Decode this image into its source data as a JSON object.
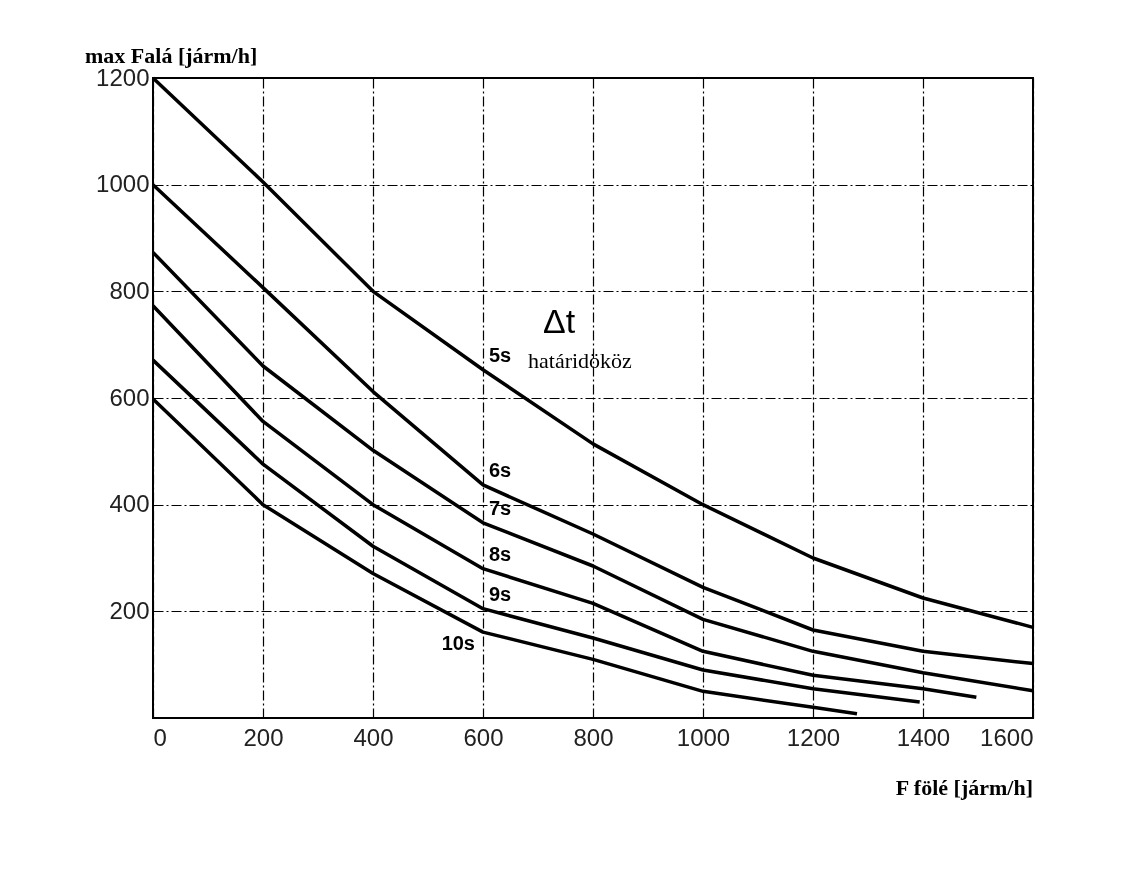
{
  "chart_data": {
    "type": "line",
    "xlabel": "F fölé [járm/h]",
    "ylabel": "max Falá [járm/h]",
    "xlim": [
      0,
      1600
    ],
    "xticks": [
      0,
      200,
      400,
      600,
      800,
      1000,
      1200,
      1400,
      1600
    ],
    "ylim": [
      0,
      1200
    ],
    "yticks": [
      200,
      400,
      600,
      800,
      1000,
      1200
    ],
    "grid": true,
    "legend": false,
    "marker": "none",
    "line_style": "solid",
    "annotations": [
      "Δt",
      "határidököz"
    ],
    "series": [
      {
        "name": "5s",
        "color": "#000000",
        "x": [
          0,
          200,
          400,
          600,
          800,
          1000,
          1200,
          1400,
          1600
        ],
        "values": [
          1200,
          1005,
          800,
          653,
          514,
          400,
          300,
          225,
          170
        ]
      },
      {
        "name": "6s",
        "color": "#000000",
        "x": [
          0,
          200,
          400,
          600,
          800,
          1000,
          1200,
          1400,
          1600
        ],
        "values": [
          1000,
          807,
          612,
          437,
          345,
          245,
          165,
          125,
          102
        ]
      },
      {
        "name": "7s",
        "color": "#000000",
        "x": [
          0,
          200,
          400,
          600,
          800,
          1000,
          1200,
          1400,
          1600
        ],
        "values": [
          873,
          660,
          502,
          366,
          285,
          185,
          125,
          85,
          51
        ]
      },
      {
        "name": "8s",
        "color": "#000000",
        "x": [
          0,
          200,
          400,
          600,
          800,
          1000,
          1200,
          1400,
          1497
        ],
        "values": [
          773,
          556,
          400,
          280,
          215,
          125,
          80,
          55,
          39
        ]
      },
      {
        "name": "9s",
        "color": "#000000",
        "x": [
          0,
          200,
          400,
          600,
          800,
          1000,
          1200,
          1394
        ],
        "values": [
          671,
          476,
          322,
          205,
          150,
          90,
          55,
          30
        ]
      },
      {
        "name": "10s",
        "color": "#000000",
        "x": [
          0,
          200,
          400,
          600,
          800,
          1000,
          1200,
          1280
        ],
        "values": [
          598,
          400,
          271,
          161,
          110,
          50,
          20,
          8
        ]
      }
    ]
  }
}
